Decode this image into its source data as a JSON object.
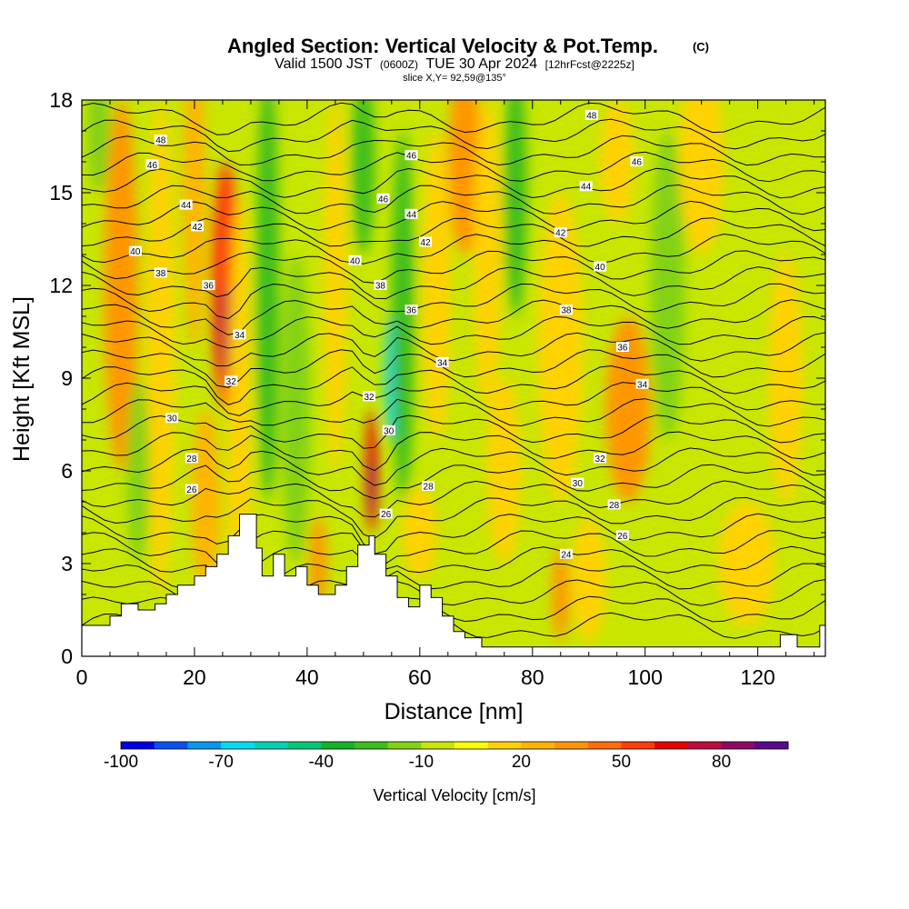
{
  "header": {
    "title": "Angled Section: Vertical Velocity & Pot.Temp.",
    "copyright": "(C)",
    "valid_prefix": "Valid 1500 JST",
    "valid_utc": "(0600Z)",
    "valid_date": "TUE 30 Apr 2024",
    "forecast": "[12hrFcst@2225z]",
    "slice": "slice X,Y= 92,59@135°"
  },
  "colorbar": {
    "title": "Vertical Velocity [cm/s]",
    "labels": [
      "-100",
      "-70",
      "-40",
      "-10",
      "20",
      "50",
      "80"
    ],
    "colors": [
      "#0000e6",
      "#0a50f0",
      "#0a96f0",
      "#00dcf0",
      "#00d2b4",
      "#00c878",
      "#14b428",
      "#3cbe1e",
      "#82d214",
      "#c8e600",
      "#ffff00",
      "#ffd200",
      "#ffb400",
      "#ff9600",
      "#ff6e0a",
      "#ff3c0a",
      "#e60000",
      "#be0a3c",
      "#8c0a64",
      "#5a0a8c"
    ]
  },
  "chart_data": {
    "type": "heatmap",
    "title": "Angled Section: Vertical Velocity & Pot.Temp.",
    "xlabel": "Distance [nm]",
    "ylabel": "Height [Kft MSL]",
    "xlim": [
      0,
      132
    ],
    "ylim": [
      0,
      18
    ],
    "xticks": [
      0,
      20,
      40,
      60,
      80,
      100,
      120
    ],
    "xtick_labels": [
      "0",
      "20",
      "40",
      "60",
      "80",
      "100",
      "120"
    ],
    "yticks": [
      0,
      3,
      6,
      9,
      12,
      15,
      18
    ],
    "ytick_labels": [
      "0",
      "3",
      "6",
      "9",
      "12",
      "15",
      "18"
    ],
    "color_field": "Vertical Velocity [cm/s]",
    "color_range": [
      -100,
      100
    ],
    "contour_field": "Potential Temperature",
    "contour_labels": [
      {
        "text": "48",
        "x": 14.0,
        "y": 16.7
      },
      {
        "text": "46",
        "x": 12.5,
        "y": 15.9
      },
      {
        "text": "44",
        "x": 18.5,
        "y": 14.6
      },
      {
        "text": "42",
        "x": 20.5,
        "y": 13.9
      },
      {
        "text": "40",
        "x": 9.5,
        "y": 13.1
      },
      {
        "text": "38",
        "x": 14.0,
        "y": 12.4
      },
      {
        "text": "36",
        "x": 22.5,
        "y": 12.0
      },
      {
        "text": "34",
        "x": 28.0,
        "y": 10.4
      },
      {
        "text": "32",
        "x": 26.5,
        "y": 8.9
      },
      {
        "text": "30",
        "x": 16.0,
        "y": 7.7
      },
      {
        "text": "28",
        "x": 19.5,
        "y": 6.4
      },
      {
        "text": "26",
        "x": 19.5,
        "y": 5.4
      },
      {
        "text": "46",
        "x": 58.5,
        "y": 16.2
      },
      {
        "text": "46",
        "x": 53.5,
        "y": 14.8
      },
      {
        "text": "44",
        "x": 58.5,
        "y": 14.3
      },
      {
        "text": "42",
        "x": 61.0,
        "y": 13.4
      },
      {
        "text": "40",
        "x": 48.5,
        "y": 12.8
      },
      {
        "text": "38",
        "x": 53.0,
        "y": 12.0
      },
      {
        "text": "36",
        "x": 58.5,
        "y": 11.2
      },
      {
        "text": "34",
        "x": 64.0,
        "y": 9.5
      },
      {
        "text": "32",
        "x": 51.0,
        "y": 8.4
      },
      {
        "text": "30",
        "x": 54.5,
        "y": 7.3
      },
      {
        "text": "28",
        "x": 61.5,
        "y": 5.5
      },
      {
        "text": "26",
        "x": 54.0,
        "y": 4.6
      },
      {
        "text": "48",
        "x": 90.5,
        "y": 17.5
      },
      {
        "text": "46",
        "x": 98.5,
        "y": 16.0
      },
      {
        "text": "44",
        "x": 89.5,
        "y": 15.2
      },
      {
        "text": "42",
        "x": 85.0,
        "y": 13.7
      },
      {
        "text": "40",
        "x": 92.0,
        "y": 12.6
      },
      {
        "text": "38",
        "x": 86.0,
        "y": 11.2
      },
      {
        "text": "36",
        "x": 96.0,
        "y": 10.0
      },
      {
        "text": "34",
        "x": 99.5,
        "y": 8.8
      },
      {
        "text": "32",
        "x": 92.0,
        "y": 6.4
      },
      {
        "text": "30",
        "x": 88.0,
        "y": 5.6
      },
      {
        "text": "28",
        "x": 94.5,
        "y": 4.9
      },
      {
        "text": "26",
        "x": 96.0,
        "y": 3.9
      },
      {
        "text": "24",
        "x": 86.0,
        "y": 3.3
      }
    ]
  }
}
